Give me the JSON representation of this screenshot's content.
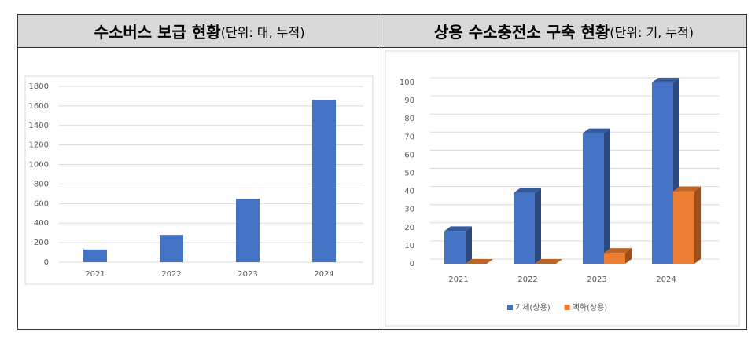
{
  "chart_data": [
    {
      "type": "bar",
      "title": "수소버스 보급 현황",
      "subtitle": "(단위: 대, 누적)",
      "categories": [
        "2021",
        "2022",
        "2023",
        "2024"
      ],
      "values": [
        130,
        280,
        650,
        1660
      ],
      "color": "#4472c4",
      "ylim": [
        0,
        1800
      ],
      "yticks": [
        0,
        200,
        400,
        600,
        800,
        1000,
        1200,
        1400,
        1600,
        1800
      ],
      "grid": true
    },
    {
      "type": "bar",
      "three_d": true,
      "title": "상용 수소충전소 구축 현황",
      "subtitle": "(단위: 기, 누적)",
      "categories": [
        "2021",
        "2022",
        "2023",
        "2024"
      ],
      "series": [
        {
          "name": "기체(상용)",
          "color": "#4472c4",
          "values": [
            18,
            39,
            72,
            100
          ]
        },
        {
          "name": "액화(상용)",
          "color": "#ed7d31",
          "values": [
            0,
            0,
            6,
            40
          ]
        }
      ],
      "ylim": [
        0,
        100
      ],
      "yticks": [
        0,
        10,
        20,
        30,
        40,
        50,
        60,
        70,
        80,
        90,
        100
      ],
      "grid": true,
      "legend": "bottom"
    }
  ]
}
